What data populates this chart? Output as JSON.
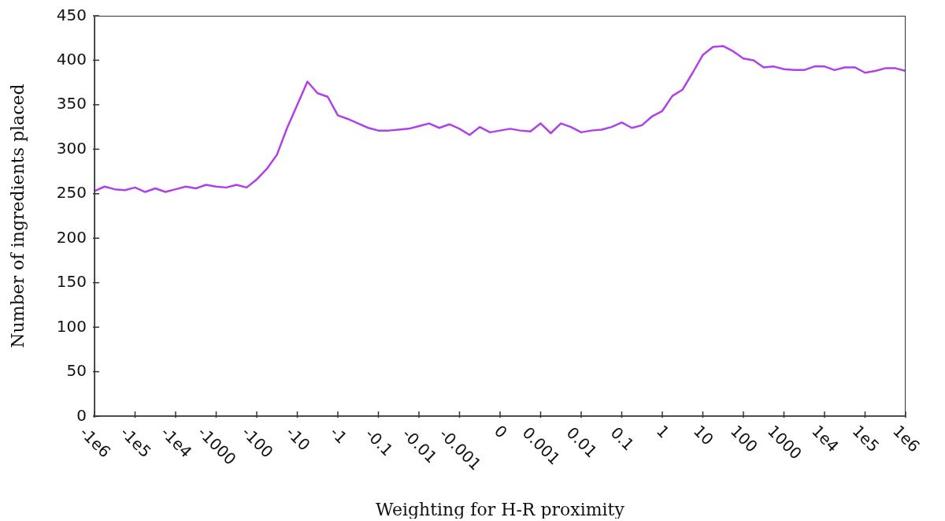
{
  "chart_data": {
    "type": "line",
    "xlabel": "Weighting for H-R proximity",
    "ylabel": "Number of ingredients placed",
    "categories": [
      "-1e6",
      null,
      null,
      null,
      "-1e5",
      null,
      null,
      null,
      "-1e4",
      null,
      null,
      null,
      "-1000",
      null,
      null,
      null,
      "-100",
      null,
      null,
      null,
      "-10",
      null,
      null,
      null,
      "-1",
      null,
      null,
      null,
      "-0.1",
      null,
      null,
      null,
      "-0.01",
      null,
      null,
      null,
      "-0.001",
      null,
      null,
      null,
      "0",
      null,
      null,
      null,
      "0.001",
      null,
      null,
      null,
      "0.01",
      null,
      null,
      null,
      "0.1",
      null,
      null,
      null,
      "1",
      null,
      null,
      null,
      "10",
      null,
      null,
      null,
      "100",
      null,
      null,
      null,
      "1000",
      null,
      null,
      null,
      "1e4",
      null,
      null,
      null,
      "1e5",
      null,
      null,
      null,
      "1e6"
    ],
    "series": [
      {
        "color": "#b040e8",
        "values": [
          253,
          258,
          255,
          254,
          257,
          252,
          256,
          252,
          255,
          258,
          256,
          260,
          258,
          257,
          260,
          257,
          266,
          278,
          294,
          324,
          350,
          376,
          363,
          359,
          338,
          334,
          329,
          324,
          321,
          321,
          322,
          323,
          326,
          329,
          324,
          328,
          323,
          316,
          325,
          319,
          321,
          323,
          321,
          320,
          329,
          318,
          329,
          325,
          319,
          321,
          322,
          325,
          330,
          324,
          327,
          337,
          343,
          360,
          367,
          386,
          406,
          415,
          416,
          410,
          402,
          400,
          392,
          393,
          390,
          389,
          389,
          393,
          393,
          389,
          392,
          392,
          386,
          388,
          391,
          391,
          388
        ]
      }
    ],
    "ylim": [
      0,
      450
    ],
    "yticks": [
      0,
      50,
      100,
      150,
      200,
      250,
      300,
      350,
      400,
      450
    ],
    "grid": false,
    "marker": "none",
    "line_style": "solid"
  }
}
